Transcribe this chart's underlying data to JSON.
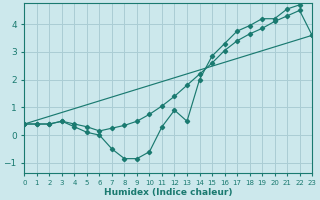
{
  "xlabel": "Humidex (Indice chaleur)",
  "bg_color": "#cce8ec",
  "grid_color": "#aacdd4",
  "line_color": "#1a7a70",
  "xlim": [
    0,
    23
  ],
  "ylim": [
    -1.35,
    4.75
  ],
  "xticks": [
    0,
    1,
    2,
    3,
    4,
    5,
    6,
    7,
    8,
    9,
    10,
    11,
    12,
    13,
    14,
    15,
    16,
    17,
    18,
    19,
    20,
    21,
    22,
    23
  ],
  "yticks": [
    -1,
    0,
    1,
    2,
    3,
    4
  ],
  "line1_x": [
    0,
    1,
    2,
    3,
    4,
    5,
    6,
    7,
    8,
    9,
    10,
    11,
    12,
    13,
    14,
    15,
    16,
    17,
    18,
    19,
    20,
    21,
    22
  ],
  "line1_y": [
    0.4,
    0.4,
    0.4,
    0.5,
    0.3,
    0.1,
    0.0,
    -0.5,
    -0.85,
    -0.85,
    -0.6,
    0.3,
    0.9,
    0.5,
    2.0,
    2.85,
    3.3,
    3.75,
    3.95,
    4.2,
    4.2,
    4.55,
    4.7
  ],
  "line2_x": [
    0,
    1,
    2,
    3,
    4,
    5,
    6,
    7,
    8,
    9,
    10,
    11,
    12,
    13,
    14,
    15,
    16,
    17,
    18,
    19,
    20,
    21,
    22,
    23
  ],
  "line2_y": [
    0.4,
    0.4,
    0.4,
    0.5,
    0.4,
    0.3,
    0.15,
    0.25,
    0.35,
    0.5,
    0.75,
    1.05,
    1.4,
    1.8,
    2.2,
    2.6,
    3.05,
    3.4,
    3.65,
    3.85,
    4.1,
    4.3,
    4.5,
    3.6
  ],
  "line3_x": [
    0,
    23
  ],
  "line3_y": [
    0.4,
    3.6
  ],
  "marker_line1_x": [
    0,
    1,
    2,
    3,
    4,
    5,
    6,
    7,
    8,
    9,
    10,
    11,
    12,
    13,
    14,
    15,
    16,
    17,
    18,
    19,
    20,
    21,
    22
  ],
  "marker_line2_x": [
    0,
    1,
    2,
    3,
    4,
    5,
    6,
    7,
    8,
    9,
    10,
    11,
    12,
    13,
    14,
    15,
    16,
    17,
    18,
    19,
    20,
    21,
    22,
    23
  ]
}
